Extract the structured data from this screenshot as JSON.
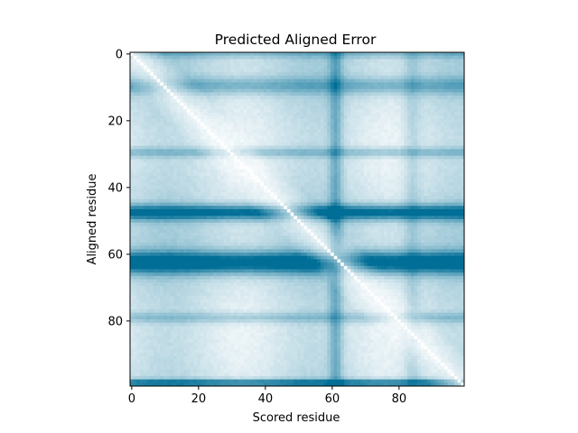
{
  "chart_data": {
    "type": "heatmap",
    "title": "Predicted Aligned Error",
    "xlabel": "Scored residue",
    "ylabel": "Aligned residue",
    "n_residues": 100,
    "xlim": [
      0,
      99
    ],
    "ylim": [
      99,
      0
    ],
    "xticks": [
      0,
      20,
      40,
      60,
      80
    ],
    "yticks": [
      0,
      20,
      40,
      60,
      80
    ],
    "colormap": {
      "low": "#ffffff",
      "high": "#006e96"
    },
    "diagonal_value": 0,
    "base_level": 0.22,
    "row_bands": [
      {
        "center": 0,
        "width": 1.2,
        "strength": 0.25
      },
      {
        "center": 9.5,
        "width": 2.5,
        "strength": 0.35
      },
      {
        "center": 29.5,
        "width": 1.5,
        "strength": 0.3
      },
      {
        "center": 47.5,
        "width": 2.2,
        "strength": 0.85
      },
      {
        "center": 62.5,
        "width": 3.2,
        "strength": 0.95
      },
      {
        "center": 79,
        "width": 1.6,
        "strength": 0.25
      },
      {
        "center": 98.5,
        "width": 1.0,
        "strength": 0.8
      }
    ],
    "col_bands": [
      {
        "center": 61,
        "width": 2.0,
        "strength": 0.35
      },
      {
        "center": 84,
        "width": 2.5,
        "strength": 0.15
      }
    ]
  }
}
